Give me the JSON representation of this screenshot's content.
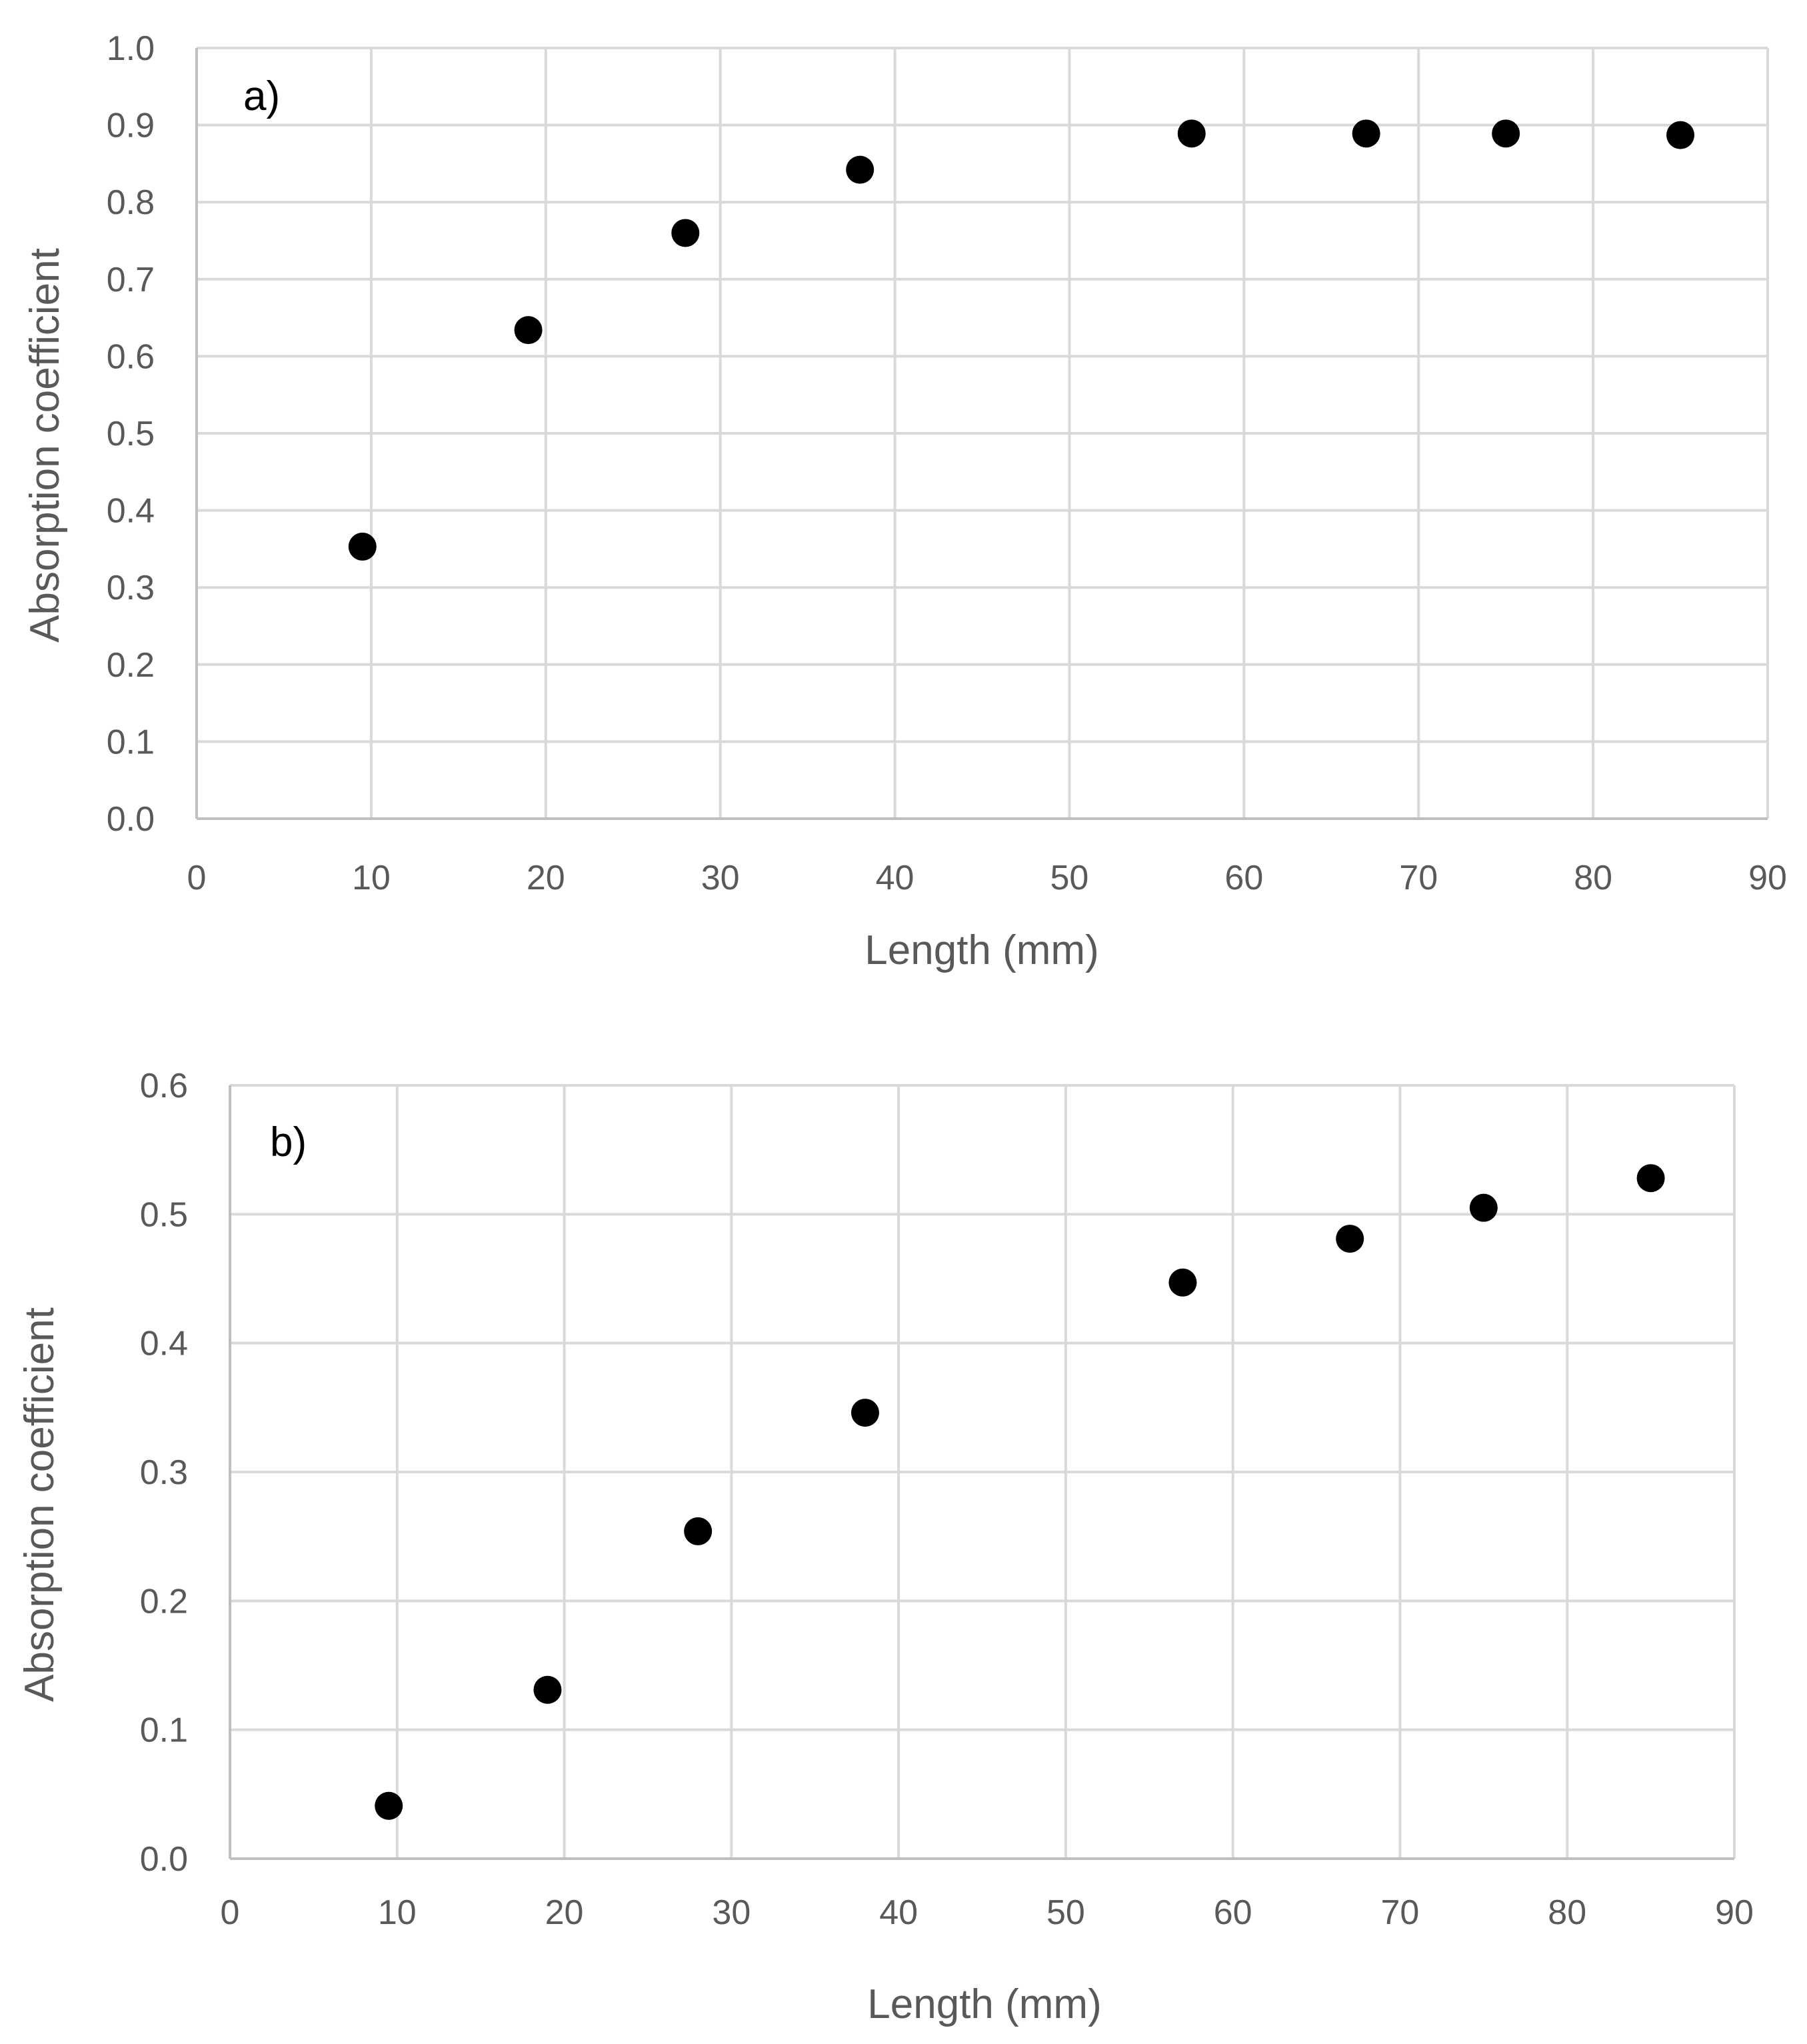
{
  "chart_data": [
    {
      "type": "scatter",
      "panel_label": "a)",
      "xlabel": "Length (mm)",
      "ylabel": "Absorption coefficient",
      "xlim": [
        0,
        90
      ],
      "ylim": [
        0,
        1.0
      ],
      "xticks": [
        0,
        10,
        20,
        30,
        40,
        50,
        60,
        70,
        80,
        90
      ],
      "xtick_labels": [
        "0",
        "10",
        "20",
        "30",
        "40",
        "50",
        "60",
        "70",
        "80",
        "90"
      ],
      "yticks": [
        0,
        0.1,
        0.2,
        0.3,
        0.4,
        0.5,
        0.6,
        0.7,
        0.8,
        0.9,
        1.0
      ],
      "ytick_labels": [
        "0.0",
        "0.1",
        "0.2",
        "0.3",
        "0.4",
        "0.5",
        "0.6",
        "0.7",
        "0.8",
        "0.9",
        "1.0"
      ],
      "grid": true,
      "legend": "none",
      "marker_color": "#000000",
      "series": [
        {
          "x": [
            9.5,
            19,
            28,
            38,
            57,
            67,
            75,
            85
          ],
          "y": [
            0.353,
            0.634,
            0.76,
            0.842,
            0.889,
            0.889,
            0.889,
            0.887
          ]
        }
      ]
    },
    {
      "type": "scatter",
      "panel_label": "b)",
      "xlabel": "Length (mm)",
      "ylabel": "Absorption coefficient",
      "xlim": [
        0,
        90
      ],
      "ylim": [
        0,
        0.6
      ],
      "xticks": [
        0,
        10,
        20,
        30,
        40,
        50,
        60,
        70,
        80,
        90
      ],
      "xtick_labels": [
        "0",
        "10",
        "20",
        "30",
        "40",
        "50",
        "60",
        "70",
        "80",
        "90"
      ],
      "yticks": [
        0,
        0.1,
        0.2,
        0.3,
        0.4,
        0.5,
        0.6
      ],
      "ytick_labels": [
        "0.0",
        "0.1",
        "0.2",
        "0.3",
        "0.4",
        "0.5",
        "0.6"
      ],
      "grid": true,
      "legend": "none",
      "marker_color": "#000000",
      "series": [
        {
          "x": [
            9.5,
            19,
            28,
            38,
            57,
            67,
            75,
            85
          ],
          "y": [
            0.041,
            0.131,
            0.254,
            0.346,
            0.447,
            0.481,
            0.505,
            0.528
          ]
        }
      ]
    }
  ]
}
